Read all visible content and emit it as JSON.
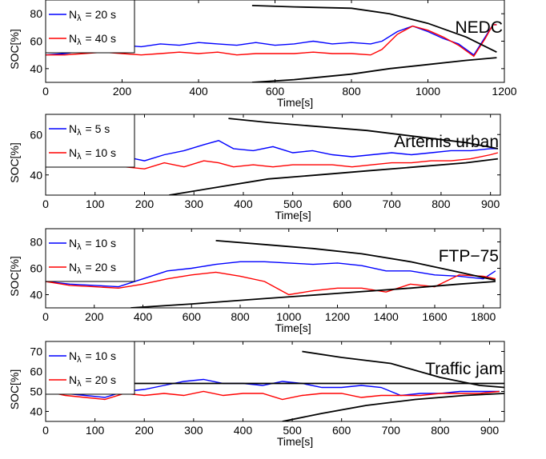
{
  "chart_data": [
    {
      "type": "line",
      "title": "NEDC",
      "xlabel": "Time[s]",
      "ylabel": "SOC[%]",
      "xlim": [
        0,
        1200
      ],
      "ylim": [
        30,
        90
      ],
      "xticks": [
        0,
        200,
        400,
        600,
        800,
        1000,
        1200
      ],
      "yticks": [
        40,
        60,
        80
      ],
      "legend_position": "top-left",
      "series": [
        {
          "name": "N_λ = 20 s",
          "color": "#0000ff",
          "x": [
            0,
            50,
            100,
            150,
            200,
            250,
            300,
            350,
            400,
            450,
            500,
            550,
            600,
            650,
            700,
            750,
            800,
            850,
            880,
            920,
            960,
            1000,
            1040,
            1080,
            1120,
            1150,
            1170,
            1180
          ],
          "y": [
            50,
            51,
            53,
            55,
            57,
            56,
            58,
            57,
            59,
            58,
            57,
            59,
            57,
            58,
            60,
            58,
            59,
            58,
            60,
            67,
            71,
            67,
            62,
            58,
            50,
            63,
            72,
            72
          ]
        },
        {
          "name": "N_λ = 40 s",
          "color": "#ff0000",
          "x": [
            0,
            50,
            100,
            150,
            200,
            250,
            300,
            350,
            400,
            450,
            500,
            550,
            600,
            650,
            700,
            750,
            800,
            850,
            880,
            920,
            960,
            1000,
            1040,
            1080,
            1120,
            1150,
            1170,
            1180
          ],
          "y": [
            50,
            50,
            51,
            52,
            51,
            50,
            51,
            52,
            51,
            52,
            50,
            51,
            51,
            51,
            52,
            51,
            51,
            50,
            54,
            65,
            71,
            68,
            63,
            57,
            49,
            62,
            72,
            72
          ]
        },
        {
          "name": "upper bound",
          "color": "#000000",
          "x": [
            540,
            650,
            800,
            900,
            1000,
            1100,
            1180
          ],
          "y": [
            86,
            85,
            84,
            80,
            73,
            63,
            52
          ]
        },
        {
          "name": "lower bound",
          "color": "#000000",
          "x": [
            540,
            650,
            800,
            900,
            1000,
            1100,
            1180
          ],
          "y": [
            30,
            32,
            36,
            40,
            43,
            46,
            48
          ]
        }
      ]
    },
    {
      "type": "line",
      "title": "Artemis urban",
      "xlabel": "Time[s]",
      "ylabel": "SOC[%]",
      "xlim": [
        0,
        920
      ],
      "ylim": [
        30,
        70
      ],
      "xticks": [
        0,
        100,
        200,
        300,
        400,
        500,
        600,
        700,
        800,
        900
      ],
      "yticks": [
        40,
        60
      ],
      "legend_position": "top-left",
      "series": [
        {
          "name": "N_λ = 5 s",
          "color": "#0000ff",
          "x": [
            0,
            40,
            80,
            120,
            160,
            200,
            240,
            280,
            320,
            350,
            380,
            420,
            460,
            500,
            540,
            580,
            620,
            660,
            700,
            740,
            780,
            820,
            860,
            900,
            915
          ],
          "y": [
            50,
            47,
            49,
            48,
            49,
            47,
            50,
            52,
            55,
            57,
            53,
            52,
            54,
            51,
            52,
            50,
            49,
            50,
            51,
            50,
            51,
            52,
            52,
            53,
            53
          ]
        },
        {
          "name": "N_λ = 10 s",
          "color": "#ff0000",
          "x": [
            0,
            40,
            80,
            120,
            160,
            200,
            240,
            280,
            320,
            350,
            380,
            420,
            460,
            500,
            540,
            580,
            620,
            660,
            700,
            740,
            780,
            820,
            860,
            900,
            915
          ],
          "y": [
            50,
            46,
            47,
            45,
            44,
            43,
            46,
            44,
            47,
            46,
            44,
            45,
            44,
            45,
            45,
            45,
            44,
            45,
            46,
            46,
            47,
            47,
            48,
            50,
            51
          ]
        },
        {
          "name": "upper bound",
          "color": "#000000",
          "x": [
            370,
            450,
            550,
            650,
            750,
            850,
            915
          ],
          "y": [
            68,
            66,
            64,
            62,
            59,
            56,
            53
          ]
        },
        {
          "name": "lower bound",
          "color": "#000000",
          "x": [
            250,
            350,
            450,
            550,
            650,
            750,
            850,
            915
          ],
          "y": [
            30,
            34,
            38,
            40,
            42,
            44,
            46,
            48
          ]
        }
      ]
    },
    {
      "type": "line",
      "title": "FTP−75",
      "xlabel": "Time[s]",
      "ylabel": "SOC[%]",
      "xlim": [
        0,
        1870
      ],
      "ylim": [
        30,
        90
      ],
      "xticks": [
        0,
        200,
        400,
        600,
        800,
        1000,
        1200,
        1400,
        1600,
        1800
      ],
      "yticks": [
        40,
        60,
        80
      ],
      "legend_position": "top-left",
      "series": [
        {
          "name": "N_λ = 10 s",
          "color": "#0000ff",
          "x": [
            0,
            100,
            200,
            300,
            400,
            500,
            600,
            700,
            800,
            900,
            1000,
            1100,
            1200,
            1300,
            1400,
            1500,
            1600,
            1700,
            1800,
            1850
          ],
          "y": [
            50,
            48,
            47,
            46,
            52,
            58,
            60,
            63,
            65,
            65,
            64,
            63,
            64,
            62,
            58,
            58,
            55,
            54,
            52,
            58
          ]
        },
        {
          "name": "N_λ = 20 s",
          "color": "#ff0000",
          "x": [
            0,
            100,
            200,
            300,
            400,
            500,
            600,
            700,
            800,
            900,
            1000,
            1100,
            1200,
            1300,
            1400,
            1500,
            1600,
            1700,
            1800,
            1850
          ],
          "y": [
            50,
            47,
            46,
            45,
            48,
            52,
            55,
            57,
            54,
            50,
            40,
            43,
            45,
            45,
            42,
            48,
            46,
            55,
            54,
            52
          ]
        },
        {
          "name": "upper bound",
          "color": "#000000",
          "x": [
            700,
            900,
            1100,
            1300,
            1500,
            1700,
            1850
          ],
          "y": [
            81,
            78,
            75,
            71,
            65,
            57,
            51
          ]
        },
        {
          "name": "lower bound",
          "color": "#000000",
          "x": [
            350,
            600,
            900,
            1200,
            1500,
            1700,
            1850
          ],
          "y": [
            30,
            33,
            37,
            41,
            45,
            48,
            50
          ]
        }
      ]
    },
    {
      "type": "line",
      "title": "Traffic jam",
      "xlabel": "Time[s]",
      "ylabel": "SOC[%]",
      "xlim": [
        0,
        930
      ],
      "ylim": [
        35,
        75
      ],
      "xticks": [
        0,
        100,
        200,
        300,
        400,
        500,
        600,
        700,
        800,
        900
      ],
      "yticks": [
        40,
        50,
        60,
        70
      ],
      "legend_position": "top-left",
      "series": [
        {
          "name": "N_λ = 10 s",
          "color": "#0000ff",
          "x": [
            0,
            40,
            80,
            120,
            160,
            200,
            240,
            280,
            320,
            360,
            400,
            440,
            480,
            520,
            560,
            600,
            640,
            680,
            720,
            760,
            800,
            840,
            880,
            920
          ],
          "y": [
            50,
            49,
            48,
            47,
            50,
            51,
            53,
            55,
            56,
            54,
            54,
            53,
            55,
            54,
            52,
            52,
            53,
            52,
            48,
            49,
            49,
            50,
            50,
            50
          ]
        },
        {
          "name": "N_λ = 20 s",
          "color": "#ff0000",
          "x": [
            0,
            40,
            80,
            120,
            160,
            200,
            240,
            280,
            320,
            360,
            400,
            440,
            480,
            520,
            560,
            600,
            640,
            680,
            720,
            760,
            800,
            840,
            880,
            920
          ],
          "y": [
            50,
            48,
            47,
            46,
            49,
            48,
            49,
            48,
            50,
            48,
            49,
            49,
            46,
            48,
            49,
            49,
            47,
            48,
            48,
            48,
            49,
            49,
            49,
            50
          ]
        },
        {
          "name": "upper bound",
          "color": "#000000",
          "x": [
            0,
            930
          ],
          "y": [
            54,
            54
          ]
        },
        {
          "name": "trend upper",
          "color": "#000000",
          "x": [
            520,
            600,
            700,
            800,
            880,
            930
          ],
          "y": [
            70,
            67,
            64,
            57,
            53,
            52
          ]
        },
        {
          "name": "lower bound",
          "color": "#000000",
          "x": [
            480,
            560,
            650,
            750,
            850,
            930
          ],
          "y": [
            35,
            39,
            43,
            46,
            48,
            49
          ]
        }
      ]
    }
  ]
}
